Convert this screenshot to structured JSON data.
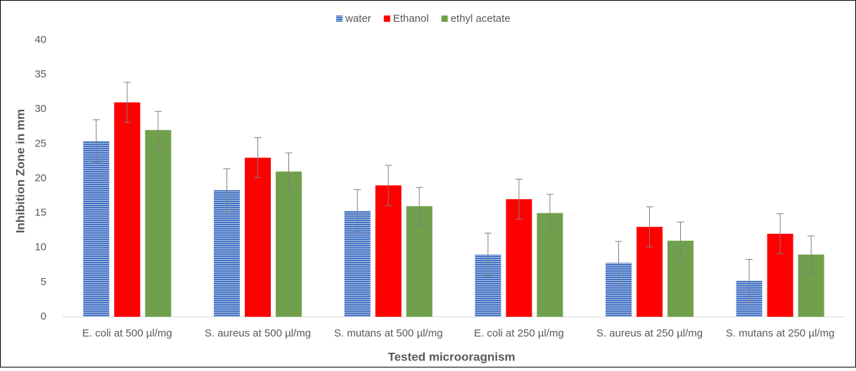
{
  "chart_data": {
    "type": "bar",
    "xlabel": "Tested  microoragnism",
    "ylabel": "Inhibition Zone in mm",
    "categories": [
      "E. coli at 500 µl/mg",
      "S. aureus at 500 µl/mg",
      "S. mutans at 500 µl/mg",
      "E. coli at 250 µl/mg",
      "S. aureus at 250 µl/mg",
      "S. mutans at 250 µl/mg"
    ],
    "series": [
      {
        "name": "water",
        "color": "#4472c4",
        "values": [
          25.4,
          18.3,
          15.3,
          9,
          7.8,
          5.2
        ],
        "errors": [
          3.1,
          3.1,
          3.1,
          3.1,
          3.1,
          3.1
        ]
      },
      {
        "name": "Ethanol",
        "color": "#ff0000",
        "values": [
          31,
          23,
          19,
          17,
          13,
          12
        ],
        "errors": [
          2.9,
          2.9,
          2.9,
          2.9,
          2.9,
          2.9
        ]
      },
      {
        "name": "ethyl acetate",
        "color": "#70a04b",
        "values": [
          27,
          21,
          16,
          15,
          11,
          9
        ],
        "errors": [
          2.7,
          2.7,
          2.7,
          2.7,
          2.7,
          2.7
        ]
      }
    ],
    "ylim": [
      0,
      40
    ],
    "yticks": [
      0,
      5,
      10,
      15,
      20,
      25,
      30,
      35,
      40
    ],
    "legend": "top"
  }
}
